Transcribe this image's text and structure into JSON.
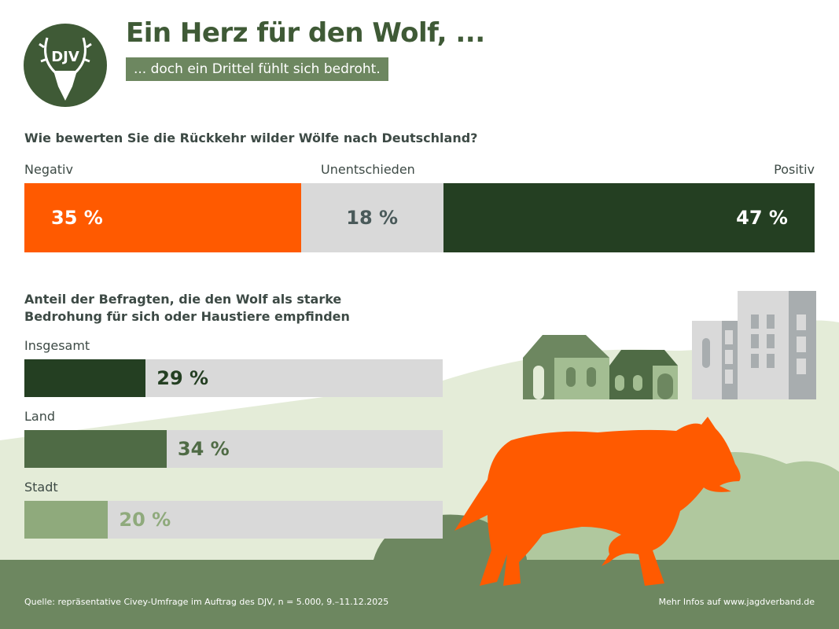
{
  "header": {
    "logo_text": "DJV",
    "title": "Ein Herz für den Wolf, ...",
    "subtitle": "... doch ein Drittel fühlt sich bedroht."
  },
  "colors": {
    "negative": "#ff5a00",
    "neutral": "#d9d9d9",
    "positive": "#243f22",
    "land": "#4f6b45",
    "stadt": "#8faa7c",
    "ground": "#6d8760"
  },
  "chart_data": [
    {
      "type": "bar",
      "stacked": true,
      "orientation": "horizontal",
      "title": "Wie bewerten Sie die Rückkehr wilder Wölfe nach Deutschland?",
      "categories": [
        "Negativ",
        "Unentschieden",
        "Positiv"
      ],
      "values": [
        35,
        18,
        47
      ],
      "labels": [
        "35 %",
        "18 %",
        "47 %"
      ],
      "unit": "%"
    },
    {
      "type": "bar",
      "orientation": "horizontal",
      "title_lines": [
        "Anteil der Befragten, die den Wolf als starke",
        "Bedrohung für sich oder Haustiere empfinden"
      ],
      "categories": [
        "Insgesamt",
        "Land",
        "Stadt"
      ],
      "values": [
        29,
        34,
        20
      ],
      "labels": [
        "29 %",
        "34 %",
        "20 %"
      ],
      "xlim": [
        0,
        100
      ],
      "unit": "%"
    }
  ],
  "footer": {
    "source": "Quelle: repräsentative Civey-Umfrage im Auftrag des DJV, n = 5.000, 9.–11.12.2025",
    "more": "Mehr Infos auf www.jagdverband.de"
  }
}
